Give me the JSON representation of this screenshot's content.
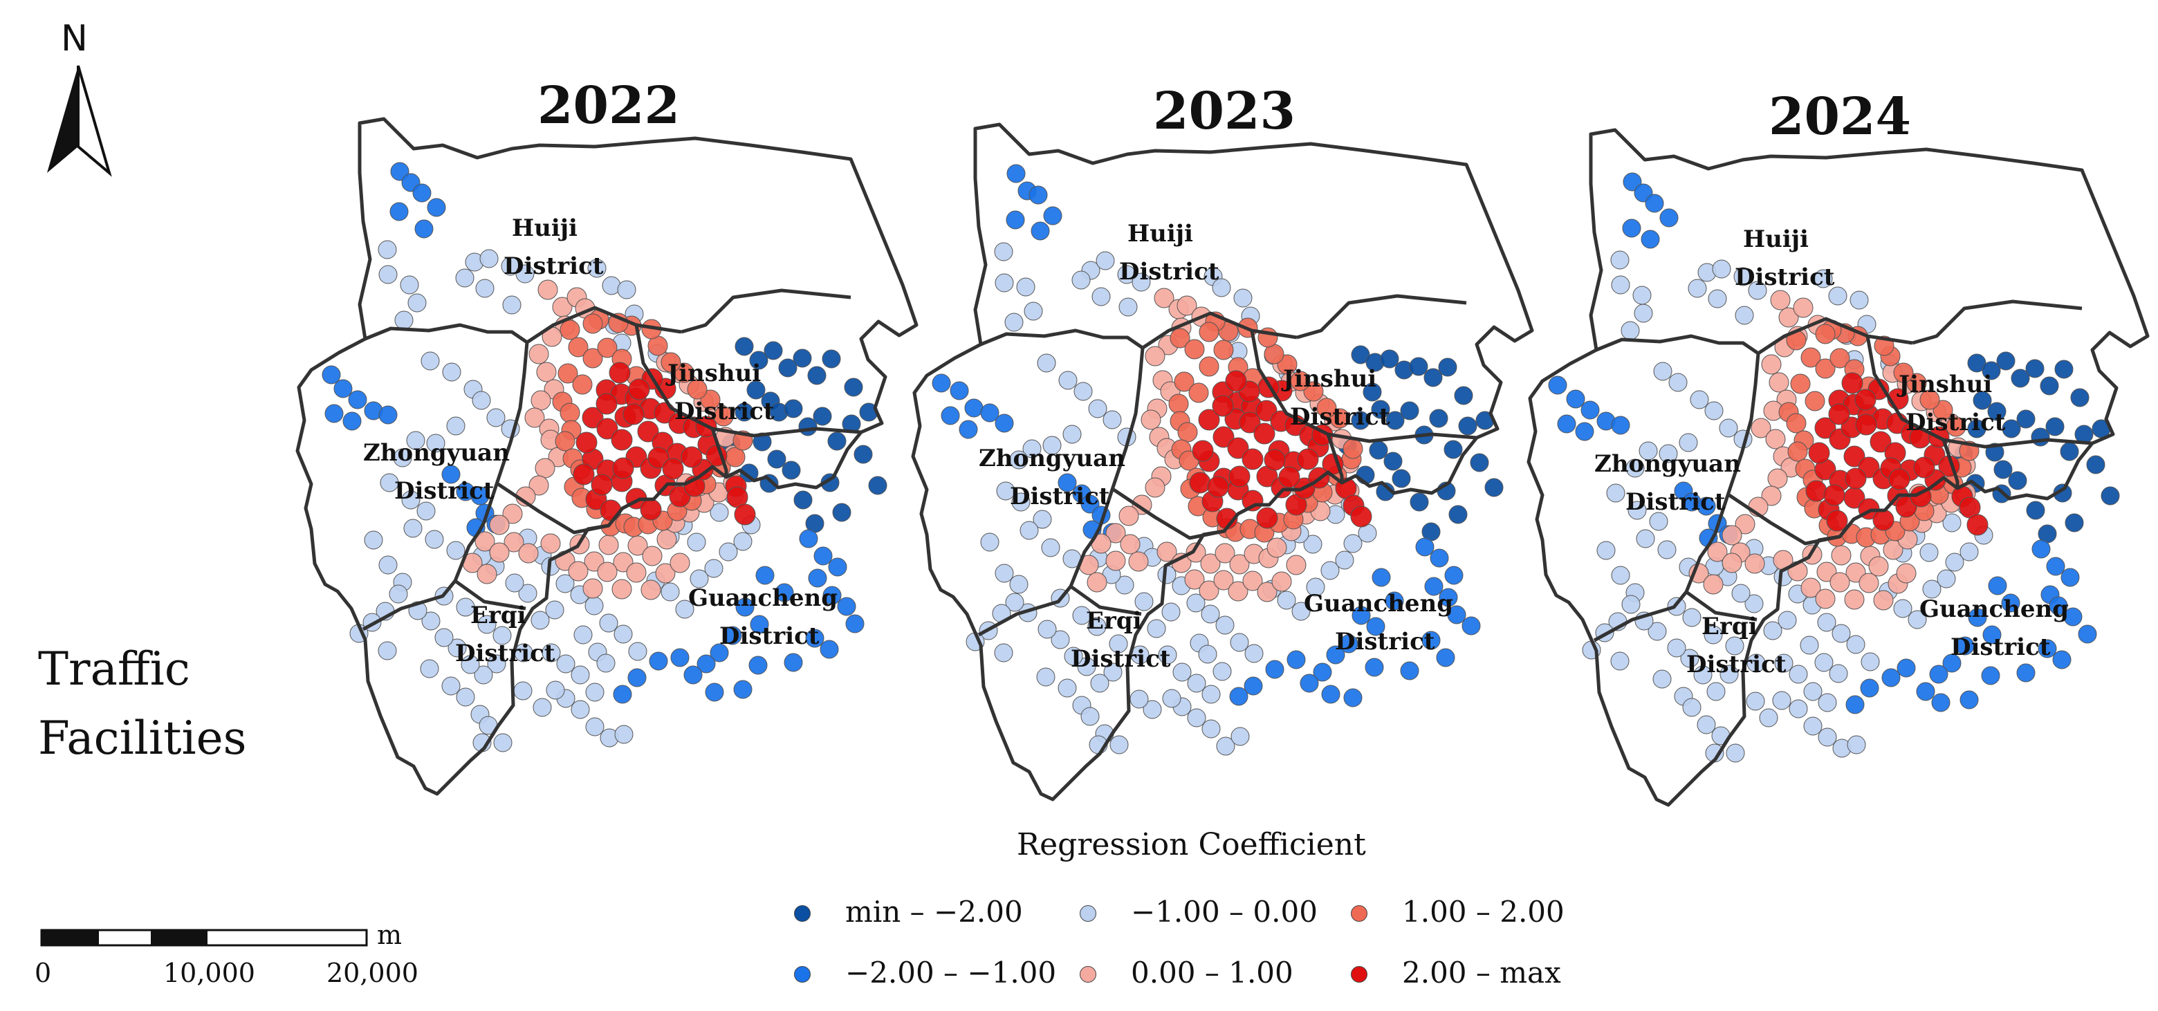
{
  "figure": {
    "north_label": "N",
    "variable_label_line1": "Traffic",
    "variable_label_line2": "Facilities"
  },
  "panels": [
    {
      "year": "2022",
      "districts": {
        "huiji_1": "Huiji",
        "huiji_2": "District",
        "jinshui_1": "Jinshui",
        "jinshui_2": "District",
        "zhongyuan_1": "Zhongyuan",
        "zhongyuan_2": "District",
        "erqi_1": "Erqi",
        "erqi_2": "District",
        "guancheng_1": "Guancheng",
        "guancheng_2": "District"
      }
    },
    {
      "year": "2023",
      "districts": {
        "huiji_1": "Huiji",
        "huiji_2": "District",
        "jinshui_1": "Jinshui",
        "jinshui_2": "District",
        "zhongyuan_1": "Zhongyuan",
        "zhongyuan_2": "District",
        "erqi_1": "Erqi",
        "erqi_2": "District",
        "guancheng_1": "Guancheng",
        "guancheng_2": "District"
      }
    },
    {
      "year": "2024",
      "districts": {
        "huiji_1": "Huiji",
        "huiji_2": "District",
        "jinshui_1": "Jinshui",
        "jinshui_2": "District",
        "zhongyuan_1": "Zhongyuan",
        "zhongyuan_2": "District",
        "erqi_1": "Erqi",
        "erqi_2": "District",
        "guancheng_1": "Guancheng",
        "guancheng_2": "District"
      }
    }
  ],
  "legend": {
    "title": "Regression Coefficient",
    "classes": [
      {
        "label": "min – −2.00",
        "color": "#0b4fa3"
      },
      {
        "label": "−2.00 – −1.00",
        "color": "#1a73e8"
      },
      {
        "label": "−1.00 – 0.00",
        "color": "#bcd0f0"
      },
      {
        "label": "0.00 – 1.00",
        "color": "#f5aaa0"
      },
      {
        "label": "1.00 – 2.00",
        "color": "#ef6a55"
      },
      {
        "label": "2.00 – max",
        "color": "#e01010"
      }
    ]
  },
  "scale_bar": {
    "unit": "m",
    "ticks": [
      "0",
      "10,000",
      "20,000"
    ]
  },
  "colors": {
    "outline": "#333333",
    "text": "#111111"
  }
}
